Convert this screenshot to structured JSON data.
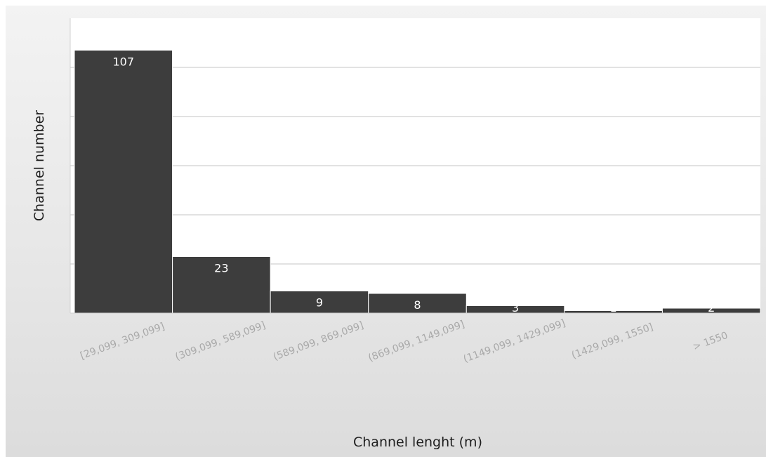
{
  "chart_data": {
    "type": "bar",
    "categories": [
      "[29,099, 309,099]",
      "(309,099, 589,099]",
      "(589,099, 869,099]",
      "(869,099, 1149,099]",
      "(1149,099, 1429,099]",
      "(1429,099, 1550]",
      "> 1550"
    ],
    "values": [
      107,
      23,
      9,
      8,
      3,
      1,
      2
    ],
    "title": "",
    "xlabel": "Channel lenght (m)",
    "ylabel": "Channel number",
    "ylim": [
      0,
      120
    ],
    "grid": true,
    "legend": "none",
    "bar_color": "#3d3d3d",
    "label_color": "#ffffff"
  }
}
